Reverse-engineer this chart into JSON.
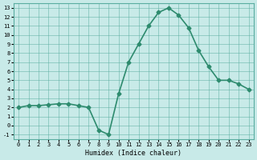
{
  "x": [
    0,
    1,
    2,
    3,
    4,
    5,
    6,
    7,
    8,
    9,
    10,
    11,
    12,
    13,
    14,
    15,
    16,
    17,
    18,
    19,
    20,
    21,
    22,
    23
  ],
  "y": [
    2,
    2.2,
    2.2,
    2.3,
    2.4,
    2.4,
    2.2,
    2.0,
    -0.5,
    -1.0,
    3.5,
    7.0,
    9.0,
    11.0,
    12.5,
    13.0,
    12.2,
    10.8,
    8.3,
    6.5,
    5.0,
    5.0,
    4.6,
    4.0
  ],
  "xlabel": "Humidex (Indice chaleur)",
  "xlim": [
    -0.5,
    23.5
  ],
  "ylim": [
    -1.5,
    13.5
  ],
  "yticks": [
    -1,
    0,
    1,
    2,
    3,
    4,
    5,
    6,
    7,
    8,
    9,
    10,
    11,
    12,
    13
  ],
  "xticks": [
    0,
    1,
    2,
    3,
    4,
    5,
    6,
    7,
    8,
    9,
    10,
    11,
    12,
    13,
    14,
    15,
    16,
    17,
    18,
    19,
    20,
    21,
    22,
    23
  ],
  "line_color": "#2e8b6e",
  "bg_color": "#c8eae8",
  "grid_color": "#5aada0",
  "marker": "D",
  "marker_size": 2.5,
  "line_width": 1.2
}
